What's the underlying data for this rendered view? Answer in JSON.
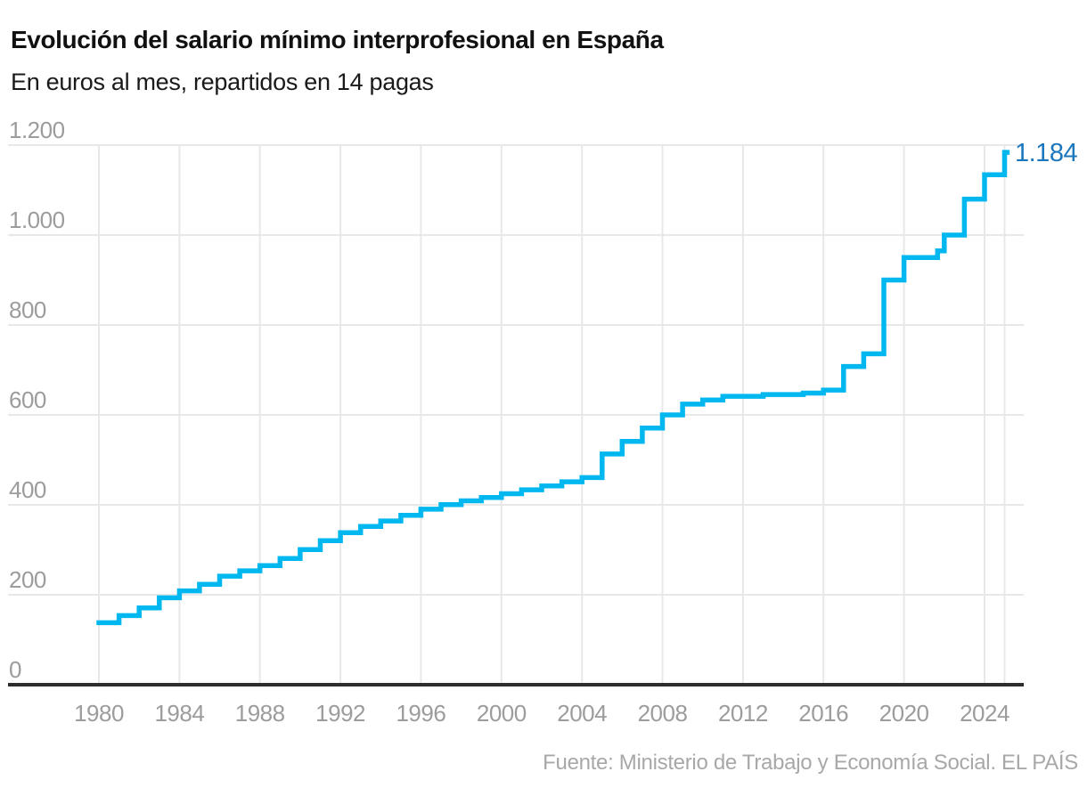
{
  "chart_data": {
    "type": "line",
    "step": true,
    "title": "Evolución del salario mínimo interprofesional en España",
    "subtitle": "En euros al mes, repartidos en 14 pagas",
    "source": "Fuente: Ministerio de Trabajo y Economía Social. EL PAÍS",
    "end_label": "1.184",
    "xlim": [
      1980,
      2025.25
    ],
    "ylim": [
      0,
      1200
    ],
    "grid": true,
    "legend": "none",
    "x_tick_years": [
      1980,
      1984,
      1988,
      1992,
      1996,
      2000,
      2004,
      2008,
      2012,
      2016,
      2020,
      2024
    ],
    "x_tick_labels": [
      "1980",
      "1984",
      "1988",
      "1992",
      "1996",
      "2000",
      "2004",
      "2008",
      "2012",
      "2016",
      "2020",
      "2024"
    ],
    "x_gridline_years": [
      1980,
      1984,
      1988,
      1992,
      1996,
      2000,
      2004,
      2008,
      2012,
      2016,
      2020,
      2024,
      2025
    ],
    "y_ticks": [
      {
        "value": 0,
        "label": "0"
      },
      {
        "value": 200,
        "label": "200"
      },
      {
        "value": 400,
        "label": "400"
      },
      {
        "value": 600,
        "label": "600"
      },
      {
        "value": 800,
        "label": "800"
      },
      {
        "value": 1000,
        "label": "1.000"
      },
      {
        "value": 1200,
        "label": "1.200"
      }
    ],
    "colors": {
      "line": "#00b7ef",
      "end_label": "#1a77bd",
      "grid": "#e8e8e8",
      "axis": "#2d2d2d",
      "tick_text": "#9c9c9c",
      "source_text": "#a8a8a8",
      "title_text": "#111111"
    },
    "series": [
      {
        "name": "Salario mínimo interprofesional (euros/mes, 14 pagas)",
        "color": "#00b7ef",
        "points": [
          [
            1980,
            137.9
          ],
          [
            1981,
            153.6
          ],
          [
            1982,
            170.9
          ],
          [
            1983,
            193.3
          ],
          [
            1984,
            208.8
          ],
          [
            1985,
            223.4
          ],
          [
            1986,
            241.3
          ],
          [
            1987,
            253.3
          ],
          [
            1988,
            264.7
          ],
          [
            1989,
            280.6
          ],
          [
            1990,
            300.6
          ],
          [
            1991,
            320.1
          ],
          [
            1992,
            338.3
          ],
          [
            1993,
            351.8
          ],
          [
            1994,
            364.1
          ],
          [
            1995,
            376.8
          ],
          [
            1996,
            390.2
          ],
          [
            1997,
            400.5
          ],
          [
            1998,
            408.9
          ],
          [
            1999,
            416.3
          ],
          [
            2000,
            424.8
          ],
          [
            2001,
            433.5
          ],
          [
            2002,
            442.2
          ],
          [
            2003,
            451.2
          ],
          [
            2004,
            460.5
          ],
          [
            2005,
            513
          ],
          [
            2006,
            540.9
          ],
          [
            2007,
            570.6
          ],
          [
            2008,
            600
          ],
          [
            2009,
            624
          ],
          [
            2010,
            633.3
          ],
          [
            2011,
            641.4
          ],
          [
            2012,
            641.4
          ],
          [
            2013,
            645.3
          ],
          [
            2014,
            645.3
          ],
          [
            2015,
            648.6
          ],
          [
            2016,
            655.2
          ],
          [
            2017,
            707.7
          ],
          [
            2018,
            735.9
          ],
          [
            2019,
            900
          ],
          [
            2020,
            950
          ],
          [
            2021.67,
            965
          ],
          [
            2022,
            1000
          ],
          [
            2023,
            1080
          ],
          [
            2024,
            1134
          ],
          [
            2025,
            1184
          ]
        ]
      }
    ]
  }
}
